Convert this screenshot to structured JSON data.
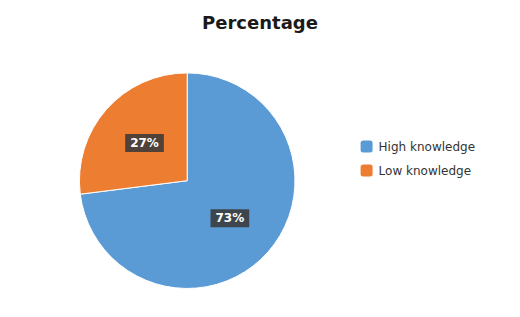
{
  "chart_data": {
    "type": "pie",
    "title": "Percentage",
    "categories": [
      "High knowledge",
      "Low knowledge"
    ],
    "values": [
      73,
      27
    ],
    "value_labels": [
      "73%",
      "27%"
    ],
    "colors": [
      "#5B9BD5",
      "#ED7D31"
    ],
    "data_labels": true,
    "legend": "right"
  }
}
